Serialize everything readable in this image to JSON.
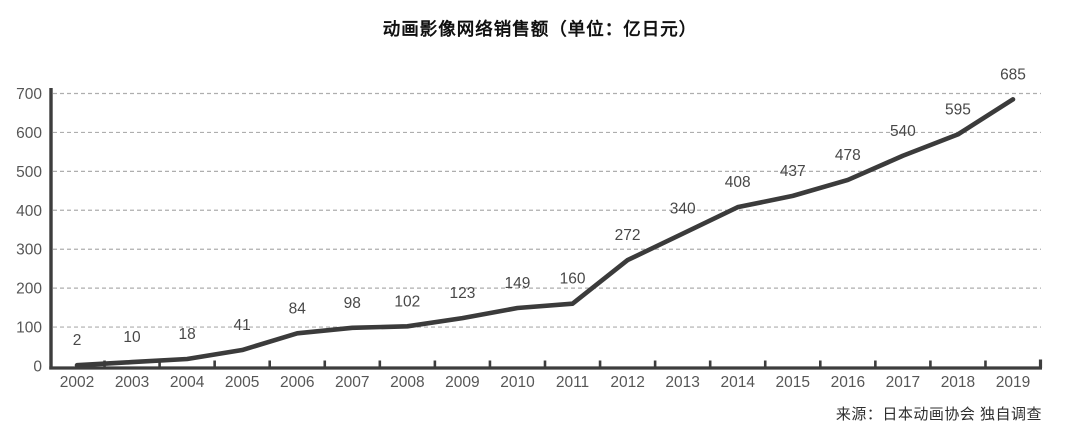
{
  "chart_data": {
    "type": "line",
    "title": "动画影像网络销售额（单位：亿日元）",
    "categories": [
      "2002",
      "2003",
      "2004",
      "2005",
      "2006",
      "2007",
      "2008",
      "2009",
      "2010",
      "2011",
      "2012",
      "2013",
      "2014",
      "2015",
      "2016",
      "2017",
      "2018",
      "2019"
    ],
    "values": [
      2,
      10,
      18,
      41,
      84,
      98,
      102,
      123,
      149,
      160,
      272,
      340,
      408,
      437,
      478,
      540,
      595,
      685
    ],
    "xlabel": "",
    "ylabel": "",
    "ylim": [
      0,
      700
    ],
    "yticks": [
      0,
      100,
      200,
      300,
      400,
      500,
      600,
      700
    ],
    "grid": "horizontal-dashed",
    "legend": "none",
    "point_labels_shown": true,
    "source_note": "来源：日本动画协会 独自调查"
  },
  "style": {
    "colors": {
      "line": "#3b3b3b",
      "axis": "#3d3d3d",
      "gridline": "#aeaeae",
      "value_label": "#484848",
      "axis_tick_label": "#565656",
      "title": "#111111",
      "source": "#2e2e2e",
      "background": "#ffffff"
    }
  }
}
